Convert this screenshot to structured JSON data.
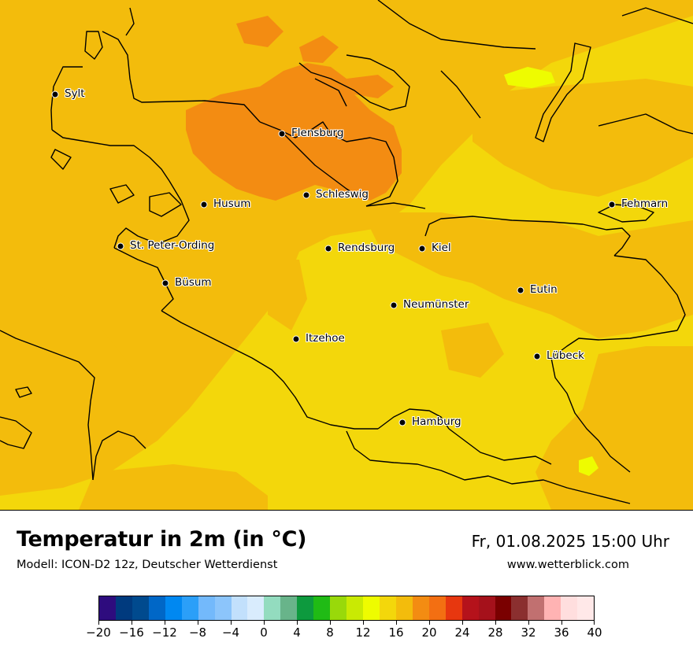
{
  "map": {
    "title": "Temperatur in 2m (in °C)",
    "model": "Modell: ICON-D2 12z, Deutscher Wetterdienst",
    "valid_time": "Fr, 01.08.2025 15:00 Uhr",
    "website": "www.wetterblick.com",
    "colors": {
      "field_16_18": "#f3d70b",
      "field_18_20": "#f3bc0c",
      "field_20_22": "#f38c12",
      "field_14_16": "#eefc00",
      "coastline": "#000000",
      "frame": "#ffffff"
    },
    "cities": [
      {
        "name": "Sylt",
        "icon": "city-dot"
      },
      {
        "name": "Flensburg",
        "icon": "city-dot"
      },
      {
        "name": "Schleswig",
        "icon": "city-dot"
      },
      {
        "name": "Husum",
        "icon": "city-dot"
      },
      {
        "name": "Fehmarn",
        "icon": "city-dot"
      },
      {
        "name": "St. Peter-Ording",
        "icon": "city-dot"
      },
      {
        "name": "Rendsburg",
        "icon": "city-dot"
      },
      {
        "name": "Kiel",
        "icon": "city-dot"
      },
      {
        "name": "Büsum",
        "icon": "city-dot"
      },
      {
        "name": "Eutin",
        "icon": "city-dot"
      },
      {
        "name": "Neumünster",
        "icon": "city-dot"
      },
      {
        "name": "Itzehoe",
        "icon": "city-dot"
      },
      {
        "name": "Lübeck",
        "icon": "city-dot"
      },
      {
        "name": "Hamburg",
        "icon": "city-dot"
      }
    ]
  },
  "legend": {
    "ticks": [
      "−20",
      "−16",
      "−12",
      "−8",
      "−4",
      "0",
      "4",
      "8",
      "12",
      "16",
      "20",
      "24",
      "28",
      "32",
      "36",
      "40"
    ],
    "colors": [
      "#2e0c7e",
      "#003a7e",
      "#004a8e",
      "#0067c7",
      "#0088f1",
      "#2b9ff8",
      "#73b9fb",
      "#8cc5fb",
      "#c2e0fc",
      "#d9ecfd",
      "#93dcbf",
      "#68b48a",
      "#0d9a3e",
      "#20bb15",
      "#99d90a",
      "#c9ea03",
      "#eefc00",
      "#f3d70b",
      "#f3bc0c",
      "#f38c12",
      "#f36f12",
      "#e7370f",
      "#b5121b",
      "#a5111b",
      "#7a0000",
      "#8b2f2f",
      "#c17070",
      "#ffb3b3",
      "#ffdede",
      "#ffe8e8"
    ]
  }
}
